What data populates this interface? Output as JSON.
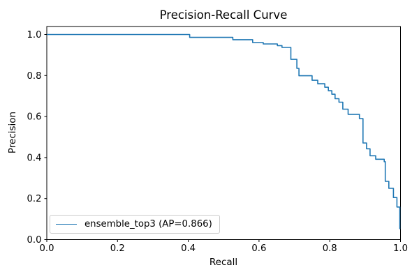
{
  "figure": {
    "background": "#ffffff"
  },
  "colors": {
    "series_blue": "#1f77b4",
    "spine": "#000000",
    "legend_border": "#cccccc",
    "text": "#000000"
  },
  "chart_data": {
    "type": "line",
    "subtype": "step-post",
    "title": "Precision-Recall Curve",
    "xlabel": "Recall",
    "ylabel": "Precision",
    "xlim": [
      0.0,
      1.0
    ],
    "ylim": [
      0.0,
      1.04
    ],
    "grid": false,
    "x_ticks": [
      "0.0",
      "0.2",
      "0.4",
      "0.6",
      "0.8",
      "1.0"
    ],
    "x_tick_values": [
      0.0,
      0.2,
      0.4,
      0.6,
      0.8,
      1.0
    ],
    "y_ticks": [
      "0.0",
      "0.2",
      "0.4",
      "0.6",
      "0.8",
      "1.0"
    ],
    "y_tick_values": [
      0.0,
      0.2,
      0.4,
      0.6,
      0.8,
      1.0
    ],
    "legend": {
      "position": "lower left",
      "entries": [
        {
          "label": "ensemble_top3 (AP=0.866)",
          "color": "#1f77b4"
        }
      ]
    },
    "series": [
      {
        "name": "ensemble_top3",
        "ap": 0.866,
        "color": "#1f77b4",
        "points": [
          [
            0.0,
            1.0
          ],
          [
            0.404,
            0.986
          ],
          [
            0.526,
            0.975
          ],
          [
            0.582,
            0.961
          ],
          [
            0.612,
            0.954
          ],
          [
            0.652,
            0.946
          ],
          [
            0.665,
            0.937
          ],
          [
            0.69,
            0.879
          ],
          [
            0.707,
            0.835
          ],
          [
            0.713,
            0.799
          ],
          [
            0.75,
            0.777
          ],
          [
            0.766,
            0.76
          ],
          [
            0.786,
            0.743
          ],
          [
            0.796,
            0.726
          ],
          [
            0.806,
            0.709
          ],
          [
            0.815,
            0.687
          ],
          [
            0.826,
            0.67
          ],
          [
            0.837,
            0.636
          ],
          [
            0.852,
            0.611
          ],
          [
            0.884,
            0.59
          ],
          [
            0.894,
            0.471
          ],
          [
            0.904,
            0.443
          ],
          [
            0.914,
            0.409
          ],
          [
            0.93,
            0.392
          ],
          [
            0.954,
            0.38
          ],
          [
            0.957,
            0.284
          ],
          [
            0.967,
            0.25
          ],
          [
            0.98,
            0.205
          ],
          [
            0.99,
            0.159
          ],
          [
            0.998,
            0.051
          ]
        ]
      }
    ]
  }
}
